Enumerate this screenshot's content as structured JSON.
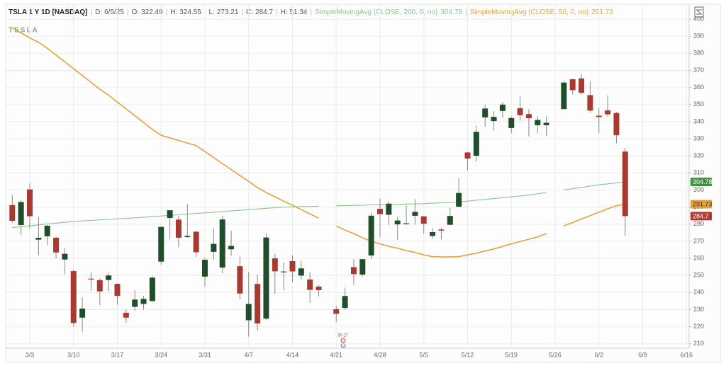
{
  "header": {
    "symbol": "TSLA 1 Y 1D [NASDAQ]",
    "date_label": "D:",
    "date": "6/5/25",
    "open_label": "O:",
    "high_label": "H:",
    "low_label": "L:",
    "close_label": "C:",
    "range": "H: 51.34"
  },
  "chart_data": {
    "type": "candlestick",
    "logo": "TESLA",
    "annotation": "$0.27",
    "categories": [
      null,
      null,
      "3/3",
      null,
      null,
      null,
      null,
      "3/10",
      null,
      null,
      null,
      null,
      "3/17",
      null,
      null,
      null,
      null,
      "3/24",
      null,
      null,
      null,
      null,
      "3/31",
      null,
      null,
      null,
      null,
      "4/7",
      null,
      null,
      null,
      null,
      "4/14",
      null,
      null,
      null,
      null,
      "4/21",
      null,
      null,
      null,
      null,
      "4/28",
      null,
      null,
      null,
      null,
      "5/5",
      null,
      null,
      null,
      null,
      "5/12",
      null,
      null,
      null,
      null,
      "5/19",
      null,
      null,
      null,
      null,
      "5/26",
      null,
      null,
      null,
      null,
      "6/2",
      null,
      null,
      null,
      null,
      "6/9",
      null,
      null,
      null,
      null,
      "6/16"
    ],
    "open": [
      291.16,
      279.5,
      300.34,
      270.93,
      272.92,
      272.06,
      259.32,
      252.54,
      225.31,
      248.13,
      247.22,
      247.31,
      245.06,
      228.16,
      231.61,
      233.34,
      234.99,
      258.08,
      283.6,
      282.66,
      272.48,
      275.58,
      249.31,
      263.8,
      254.6,
      265.29,
      255.38,
      223.78,
      245,
      224.69,
      260,
      251.84,
      258.36,
      249.91,
      247.61,
      243.47,
      null,
      230.26,
      230.96,
      254.86,
      250.5,
      261.69,
      288.98,
      285.5,
      279.9,
      280.01,
      284.9,
      284.57,
      273.1,
      276.88,
      279.63,
      290.21,
      321.99,
      320,
      342.5,
      340.34,
      346.24,
      336.3,
      347.87,
      344.43,
      337.92,
      337.92,
      null,
      347.35,
      364.84,
      365.29,
      355.52,
      343.5,
      346.6,
      345.1,
      322.49,
      null,
      null,
      null,
      null,
      null,
      null,
      null
    ],
    "high": [
      297.23,
      293.88,
      303.94,
      284.35,
      279.55,
      272.65,
      266.25,
      253.37,
      237.06,
      251.84,
      248.34,
      251.58,
      245.4,
      230.1,
      241.41,
      238,
      249.52,
      278.64,
      288.2,
      284.9,
      291.85,
      276.1,
      260.56,
      277.45,
      284.99,
      276.3,
      261,
      252,
      250.44,
      274.69,
      262.49,
      257.74,
      261.8,
      258.59,
      251.97,
      244.34,
      null,
      232.21,
      242.79,
      259.45,
      259.54,
      286.85,
      294.86,
      293.32,
      284.45,
      290.87,
      294.78,
      284.85,
      277.73,
      277.92,
      289.8,
      307.04,
      322.21,
      337.59,
      350,
      346.14,
      351.62,
      343,
      354.99,
      347.35,
      343.18,
      343.18,
      null,
      363.79,
      365,
      367.71,
      363.68,
      348.02,
      355.4,
      345.6,
      324.55,
      null,
      null,
      null,
      null,
      null,
      null,
      null
    ],
    "low": [
      280.88,
      273.6,
      277.3,
      261.84,
      267.71,
      260.02,
      250.73,
      220,
      217.02,
      241.1,
      232.6,
      240.73,
      232.8,
      222.28,
      229.2,
      230.05,
      234.55,
      256.33,
      271.28,
      266.51,
      271.82,
      260.57,
      243.36,
      259.25,
      251.27,
      261.51,
      236,
      214.25,
      217.8,
      223.88,
      239.33,
      241.36,
      245.93,
      247.54,
      233.89,
      237.68,
      null,
      222.79,
      229.85,
      244.43,
      249.2,
      259.63,
      272.42,
      279.47,
      270.78,
      279.81,
      279.81,
      274.4,
      271.35,
      271,
      279.41,
      290,
      311.5,
      316.8,
      337,
      334.72,
      342.33,
      333.37,
      340.54,
      331.33,
      333.21,
      331.55,
      null,
      347.32,
      355.91,
      356,
      345.29,
      333.33,
      343.04,
      327.33,
      273.21,
      null,
      null,
      null,
      null,
      null,
      null,
      null
    ],
    "close": [
      281.95,
      292.98,
      284.65,
      272.04,
      279.1,
      263.45,
      262.67,
      222.15,
      230.58,
      248.09,
      240.68,
      249.98,
      238.01,
      225.31,
      235.86,
      236.26,
      248.71,
      278.39,
      288.14,
      272.06,
      273.13,
      263.55,
      259.16,
      268.46,
      282.76,
      267.28,
      239.43,
      233.29,
      221.86,
      272.2,
      252.4,
      252.31,
      252.35,
      254.11,
      241.55,
      241.37,
      null,
      227.5,
      237.97,
      250.74,
      259.51,
      284.95,
      285.88,
      292.03,
      282.16,
      280.52,
      287.21,
      280.26,
      275.35,
      276.22,
      284.82,
      298.26,
      318.38,
      334.07,
      347.68,
      342.82,
      349.98,
      342.09,
      343.82,
      342.01,
      341.04,
      339.34,
      null,
      362.89,
      358.43,
      356.9,
      346.46,
      342.69,
      344.27,
      332.05,
      284.7,
      null,
      null,
      null,
      null,
      null,
      null,
      null
    ],
    "up_color": "#1f4f2a",
    "down_color": "#a83a32",
    "series": [
      {
        "name": "SimpleMovingAvg (CLOSE, 200, 0, no)",
        "color": "#8cc48c",
        "values": [
          278,
          278.5,
          279,
          279.6,
          280.1,
          280.6,
          281.1,
          281.6,
          281.9,
          282.2,
          282.5,
          282.8,
          283.1,
          283.4,
          283.7,
          284,
          284.4,
          284.8,
          285.1,
          285.5,
          285.9,
          286.3,
          286.6,
          287,
          287.4,
          287.8,
          288.1,
          288.5,
          288.9,
          289.3,
          289.6,
          290,
          290.1,
          290.3,
          290.4,
          290.5,
          null,
          290.8,
          290.9,
          291,
          291.1,
          291.3,
          291.4,
          291.5,
          291.6,
          291.8,
          291.9,
          292,
          292.3,
          292.5,
          292.8,
          293,
          293.5,
          294,
          294.5,
          295,
          295.5,
          296,
          296.5,
          297,
          297.8,
          298.5,
          null,
          300,
          300.8,
          301.5,
          302.3,
          303,
          303.6,
          304.2,
          304.78,
          null,
          null,
          null,
          null,
          null,
          null,
          null
        ]
      },
      {
        "name": "SimpleMovingAvg (CLOSE, 50, 0, no)",
        "color": "#e3a23b",
        "values": [
          395,
          392,
          389,
          386.5,
          383,
          379,
          375,
          371,
          367,
          363,
          359,
          355.5,
          351.5,
          347.5,
          343.5,
          339.5,
          335.5,
          332,
          330.5,
          329,
          327.5,
          326,
          322.5,
          319,
          315.5,
          312,
          308.5,
          305,
          301.5,
          298.5,
          296,
          293.5,
          291,
          288.5,
          286,
          283.5,
          null,
          279,
          276.5,
          274.5,
          272,
          270,
          268.5,
          267,
          266,
          264.5,
          263.5,
          262,
          261,
          260.8,
          260.8,
          261,
          262,
          263,
          264.3,
          265.5,
          267,
          268.5,
          269.8,
          271.2,
          272.5,
          274.5,
          null,
          279,
          281,
          283,
          285,
          287,
          289,
          290.8,
          291.73,
          null,
          null,
          null,
          null,
          null,
          null,
          null
        ]
      }
    ],
    "badge_colors": [
      "#3f8f3f",
      "#e3a23b",
      "#b03a30"
    ],
    "ylim": [
      207,
      405
    ],
    "yticks": [
      210,
      220,
      230,
      240,
      250,
      260,
      270,
      280,
      290,
      300,
      310,
      320,
      330,
      340,
      350,
      360,
      370,
      380,
      390,
      400
    ],
    "grid": true
  }
}
